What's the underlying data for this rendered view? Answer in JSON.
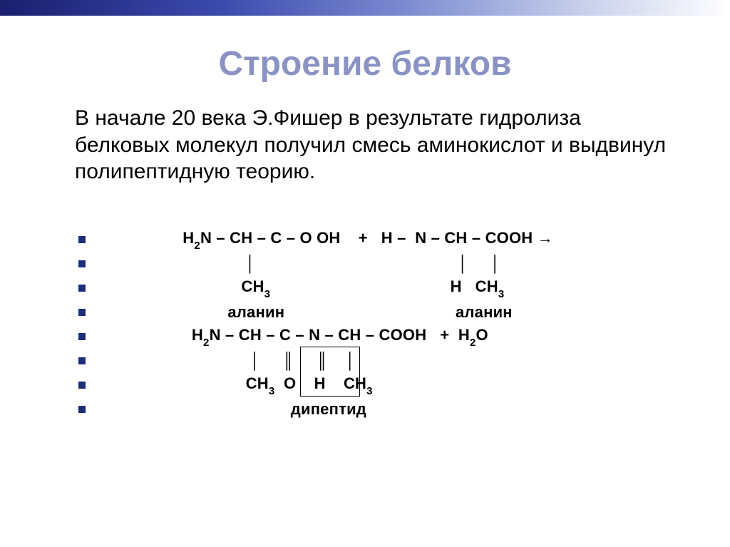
{
  "title": "Строение белков",
  "paragraph": "В начале 20 века Э.Фишер в результате гидролиза белковых молекул получил смесь аминокислот и выдвинул полипептидную теорию.",
  "lines": [
    {
      "pre": " H",
      "s1": "2",
      "mid": "N – CH – C – O OH    +   H –  N – CH – COOH →"
    },
    {
      "pre": "               │                                             │     │"
    },
    {
      "pre": "              CH",
      "s1": "3",
      "mid": "                                        H   CH",
      "s2": "3"
    },
    {
      "pre": "           аланин                                      аланин"
    },
    {
      "pre": "   H",
      "s1": "2",
      "mid": "N – CH – C – N – CH – COOH   +  H",
      "s2": "2",
      "tail": "O"
    },
    {
      "pre": "                │     ║     ║    │"
    },
    {
      "pre": "               CH",
      "s1": "3",
      "mid": "  O    H    CH",
      "s2": "3"
    },
    {
      "pre": "                         дипептид"
    }
  ],
  "colors": {
    "title": "#8a93c4",
    "bullet": "#1f2c77",
    "text": "#000000",
    "background": "#ffffff",
    "gradient_from": "#1a1f6e",
    "gradient_to": "#ffffff"
  },
  "font_sizes": {
    "title": 48,
    "paragraph": 30,
    "chem": 22,
    "sub": 15
  }
}
